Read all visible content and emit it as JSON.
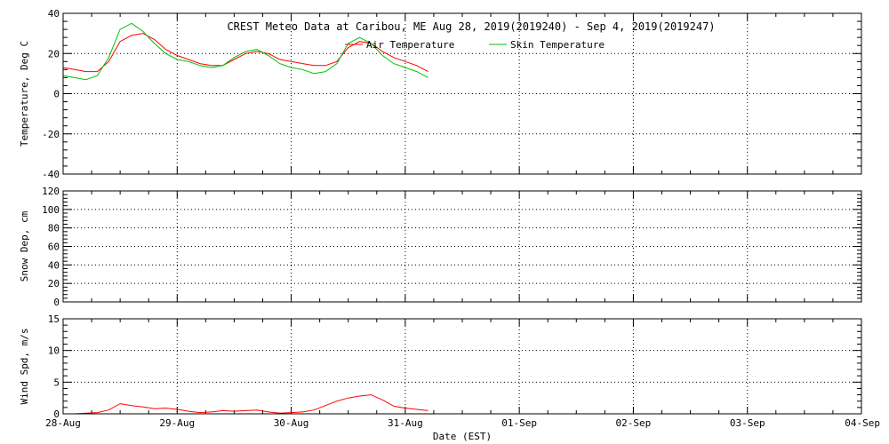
{
  "title": "CREST Meteo Data at Caribou, ME   Aug 28, 2019(2019240) - Sep  4, 2019(2019247)",
  "xlabel": "Date (EST)",
  "x_ticks": [
    "28-Aug",
    "29-Aug",
    "30-Aug",
    "31-Aug",
    "01-Sep",
    "02-Sep",
    "03-Sep",
    "04-Sep"
  ],
  "colors": {
    "air": "#ff0000",
    "skin": "#00c000",
    "wind": "#ff0000",
    "axis": "#000000",
    "grid": "#000000"
  },
  "chart_data": [
    {
      "type": "line",
      "ylabel": "Temperature, Deg C",
      "ylim": [
        -40,
        40
      ],
      "y_ticks": [
        "-40",
        "-20",
        "0",
        "20",
        "40"
      ],
      "y_tick_values": [
        -40,
        -20,
        0,
        20,
        40
      ],
      "xlim": [
        0,
        7
      ],
      "grid": true,
      "legend_position": "top-center",
      "series": [
        {
          "name": "Air Temperature",
          "x": [
            0,
            0.1,
            0.2,
            0.3,
            0.4,
            0.5,
            0.6,
            0.7,
            0.8,
            0.9,
            1.0,
            1.1,
            1.2,
            1.3,
            1.4,
            1.5,
            1.6,
            1.7,
            1.8,
            1.9,
            2.0,
            2.1,
            2.2,
            2.3,
            2.4,
            2.5,
            2.6,
            2.7,
            2.8,
            2.9,
            3.0,
            3.1,
            3.2
          ],
          "y": [
            13,
            12,
            11,
            11,
            16,
            26,
            29,
            30,
            27,
            22,
            19,
            17,
            15,
            14,
            14,
            17,
            20,
            21,
            20,
            17,
            16,
            15,
            14,
            14,
            16,
            23,
            26,
            25,
            21,
            18,
            16,
            14,
            11
          ]
        },
        {
          "name": "Skin Temperature",
          "x": [
            0,
            0.1,
            0.2,
            0.3,
            0.4,
            0.5,
            0.6,
            0.7,
            0.8,
            0.9,
            1.0,
            1.1,
            1.2,
            1.3,
            1.4,
            1.5,
            1.6,
            1.7,
            1.8,
            1.9,
            2.0,
            2.1,
            2.2,
            2.3,
            2.4,
            2.5,
            2.6,
            2.7,
            2.8,
            2.9,
            3.0,
            3.1,
            3.2
          ],
          "y": [
            9,
            8,
            7,
            9,
            18,
            32,
            35,
            31,
            25,
            20,
            17,
            16,
            14,
            13,
            14,
            18,
            21,
            22,
            19,
            15,
            13,
            12,
            10,
            11,
            15,
            25,
            28,
            25,
            19,
            15,
            13,
            11,
            8
          ]
        }
      ]
    },
    {
      "type": "line",
      "ylabel": "Snow Dep, cm",
      "ylim": [
        0,
        120
      ],
      "y_ticks": [
        "0",
        "20",
        "40",
        "60",
        "80",
        "100",
        "120"
      ],
      "y_tick_values": [
        0,
        20,
        40,
        60,
        80,
        100,
        120
      ],
      "xlim": [
        0,
        7
      ],
      "grid": true,
      "series": []
    },
    {
      "type": "line",
      "ylabel": "Wind Spd, m/s",
      "ylim": [
        0,
        15
      ],
      "y_ticks": [
        "0",
        "5",
        "10",
        "15"
      ],
      "y_tick_values": [
        0,
        5,
        10,
        15
      ],
      "xlim": [
        0,
        7
      ],
      "grid": true,
      "series": [
        {
          "name": "",
          "x": [
            0,
            0.1,
            0.2,
            0.3,
            0.4,
            0.5,
            0.6,
            0.7,
            0.8,
            0.9,
            1.0,
            1.1,
            1.2,
            1.3,
            1.4,
            1.5,
            1.6,
            1.7,
            1.8,
            1.9,
            2.0,
            2.1,
            2.2,
            2.3,
            2.4,
            2.5,
            2.6,
            2.7,
            2.8,
            2.9,
            3.0,
            3.1,
            3.2
          ],
          "y": [
            0,
            0,
            0.1,
            0.2,
            0.6,
            1.6,
            1.3,
            1.1,
            0.8,
            0.9,
            0.7,
            0.4,
            0.2,
            0.3,
            0.5,
            0.4,
            0.5,
            0.6,
            0.3,
            0.1,
            0.2,
            0.3,
            0.6,
            1.3,
            2.0,
            2.5,
            2.8,
            3.0,
            2.2,
            1.2,
            0.9,
            0.7,
            0.5
          ]
        }
      ]
    }
  ]
}
